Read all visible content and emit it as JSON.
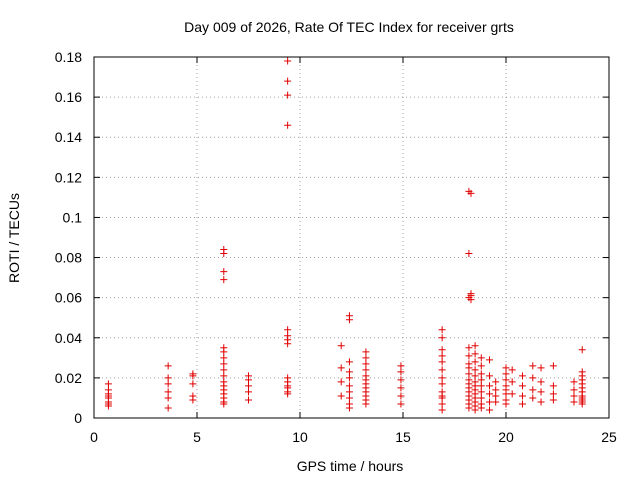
{
  "chart_data": {
    "type": "scatter",
    "title": "Day 009 of 2026, Rate Of TEC Index for receiver grts",
    "xlabel": "GPS time / hours",
    "ylabel": "ROTI / TECUs",
    "xlim": [
      0,
      25
    ],
    "ylim": [
      0,
      0.18
    ],
    "xticks": [
      0,
      5,
      10,
      15,
      20,
      25
    ],
    "yticks": [
      0,
      0.02,
      0.04,
      0.06,
      0.08,
      0.1,
      0.12,
      0.14,
      0.16,
      0.18
    ],
    "xtick_labels": [
      "0",
      "5",
      "10",
      "15",
      "20",
      "25"
    ],
    "ytick_labels": [
      "0",
      "0.02",
      "0.04",
      "0.06",
      "0.08",
      "0.1",
      "0.12",
      "0.14",
      "0.16",
      "0.18"
    ],
    "grid": true,
    "marker": "+",
    "color": "#e00000",
    "series": [
      {
        "name": "ROTI",
        "points": [
          [
            0.7,
            0.017
          ],
          [
            0.7,
            0.014
          ],
          [
            0.7,
            0.012
          ],
          [
            0.7,
            0.011
          ],
          [
            0.7,
            0.01
          ],
          [
            0.7,
            0.008
          ],
          [
            0.7,
            0.007
          ],
          [
            0.7,
            0.006
          ],
          [
            3.6,
            0.026
          ],
          [
            3.6,
            0.02
          ],
          [
            3.6,
            0.017
          ],
          [
            3.6,
            0.013
          ],
          [
            3.6,
            0.01
          ],
          [
            3.6,
            0.005
          ],
          [
            4.8,
            0.022
          ],
          [
            4.8,
            0.021
          ],
          [
            4.8,
            0.017
          ],
          [
            4.8,
            0.011
          ],
          [
            4.8,
            0.009
          ],
          [
            6.3,
            0.084
          ],
          [
            6.3,
            0.082
          ],
          [
            6.3,
            0.073
          ],
          [
            6.3,
            0.069
          ],
          [
            6.3,
            0.035
          ],
          [
            6.3,
            0.033
          ],
          [
            6.3,
            0.03
          ],
          [
            6.3,
            0.027
          ],
          [
            6.3,
            0.024
          ],
          [
            6.3,
            0.021
          ],
          [
            6.3,
            0.018
          ],
          [
            6.3,
            0.016
          ],
          [
            6.3,
            0.014
          ],
          [
            6.3,
            0.012
          ],
          [
            6.3,
            0.01
          ],
          [
            6.3,
            0.008
          ],
          [
            6.3,
            0.007
          ],
          [
            7.5,
            0.021
          ],
          [
            7.5,
            0.019
          ],
          [
            7.5,
            0.016
          ],
          [
            7.5,
            0.013
          ],
          [
            7.5,
            0.009
          ],
          [
            9.4,
            0.178
          ],
          [
            9.4,
            0.168
          ],
          [
            9.4,
            0.161
          ],
          [
            9.4,
            0.146
          ],
          [
            9.4,
            0.044
          ],
          [
            9.4,
            0.041
          ],
          [
            9.4,
            0.039
          ],
          [
            9.4,
            0.037
          ],
          [
            9.4,
            0.02
          ],
          [
            9.4,
            0.018
          ],
          [
            9.4,
            0.016
          ],
          [
            9.4,
            0.015
          ],
          [
            9.4,
            0.013
          ],
          [
            9.4,
            0.012
          ],
          [
            12.0,
            0.036
          ],
          [
            12.0,
            0.025
          ],
          [
            12.0,
            0.018
          ],
          [
            12.0,
            0.011
          ],
          [
            12.4,
            0.051
          ],
          [
            12.4,
            0.049
          ],
          [
            12.4,
            0.028
          ],
          [
            12.4,
            0.023
          ],
          [
            12.4,
            0.02
          ],
          [
            12.4,
            0.016
          ],
          [
            12.4,
            0.013
          ],
          [
            12.4,
            0.01
          ],
          [
            12.4,
            0.007
          ],
          [
            12.4,
            0.005
          ],
          [
            13.2,
            0.033
          ],
          [
            13.2,
            0.03
          ],
          [
            13.2,
            0.027
          ],
          [
            13.2,
            0.024
          ],
          [
            13.2,
            0.021
          ],
          [
            13.2,
            0.019
          ],
          [
            13.2,
            0.017
          ],
          [
            13.2,
            0.015
          ],
          [
            13.2,
            0.013
          ],
          [
            13.2,
            0.011
          ],
          [
            13.2,
            0.009
          ],
          [
            13.2,
            0.007
          ],
          [
            14.9,
            0.026
          ],
          [
            14.9,
            0.023
          ],
          [
            14.9,
            0.019
          ],
          [
            14.9,
            0.015
          ],
          [
            14.9,
            0.011
          ],
          [
            14.9,
            0.007
          ],
          [
            16.9,
            0.044
          ],
          [
            16.9,
            0.04
          ],
          [
            16.9,
            0.034
          ],
          [
            16.9,
            0.031
          ],
          [
            16.9,
            0.028
          ],
          [
            16.9,
            0.024
          ],
          [
            16.9,
            0.02
          ],
          [
            16.9,
            0.017
          ],
          [
            16.9,
            0.013
          ],
          [
            16.9,
            0.011
          ],
          [
            16.9,
            0.01
          ],
          [
            16.9,
            0.007
          ],
          [
            16.9,
            0.004
          ],
          [
            18.2,
            0.113
          ],
          [
            18.3,
            0.112
          ],
          [
            18.2,
            0.082
          ],
          [
            18.3,
            0.062
          ],
          [
            18.3,
            0.061
          ],
          [
            18.2,
            0.06
          ],
          [
            18.3,
            0.059
          ],
          [
            18.2,
            0.035
          ],
          [
            18.2,
            0.031
          ],
          [
            18.2,
            0.027
          ],
          [
            18.2,
            0.025
          ],
          [
            18.2,
            0.022
          ],
          [
            18.2,
            0.019
          ],
          [
            18.2,
            0.017
          ],
          [
            18.2,
            0.015
          ],
          [
            18.2,
            0.013
          ],
          [
            18.2,
            0.011
          ],
          [
            18.2,
            0.009
          ],
          [
            18.2,
            0.007
          ],
          [
            18.2,
            0.005
          ],
          [
            18.5,
            0.036
          ],
          [
            18.5,
            0.032
          ],
          [
            18.5,
            0.028
          ],
          [
            18.5,
            0.024
          ],
          [
            18.5,
            0.021
          ],
          [
            18.5,
            0.018
          ],
          [
            18.5,
            0.016
          ],
          [
            18.5,
            0.014
          ],
          [
            18.5,
            0.012
          ],
          [
            18.5,
            0.01
          ],
          [
            18.5,
            0.008
          ],
          [
            18.5,
            0.006
          ],
          [
            18.5,
            0.004
          ],
          [
            18.8,
            0.03
          ],
          [
            18.8,
            0.026
          ],
          [
            18.8,
            0.022
          ],
          [
            18.8,
            0.019
          ],
          [
            18.8,
            0.016
          ],
          [
            18.8,
            0.013
          ],
          [
            18.8,
            0.01
          ],
          [
            18.8,
            0.007
          ],
          [
            18.8,
            0.005
          ],
          [
            19.2,
            0.029
          ],
          [
            19.2,
            0.021
          ],
          [
            19.2,
            0.016
          ],
          [
            19.2,
            0.012
          ],
          [
            19.2,
            0.008
          ],
          [
            19.2,
            0.004
          ],
          [
            19.5,
            0.018
          ],
          [
            19.5,
            0.014
          ],
          [
            19.5,
            0.011
          ],
          [
            19.5,
            0.008
          ],
          [
            20.0,
            0.025
          ],
          [
            20.0,
            0.022
          ],
          [
            20.0,
            0.019
          ],
          [
            20.0,
            0.016
          ],
          [
            20.0,
            0.014
          ],
          [
            20.0,
            0.012
          ],
          [
            20.0,
            0.009
          ],
          [
            20.0,
            0.007
          ],
          [
            20.3,
            0.024
          ],
          [
            20.3,
            0.018
          ],
          [
            20.3,
            0.012
          ],
          [
            20.8,
            0.021
          ],
          [
            20.8,
            0.016
          ],
          [
            20.8,
            0.011
          ],
          [
            20.8,
            0.007
          ],
          [
            21.3,
            0.026
          ],
          [
            21.3,
            0.02
          ],
          [
            21.3,
            0.014
          ],
          [
            21.3,
            0.01
          ],
          [
            21.7,
            0.025
          ],
          [
            21.7,
            0.018
          ],
          [
            21.7,
            0.013
          ],
          [
            21.7,
            0.008
          ],
          [
            22.3,
            0.026
          ],
          [
            22.3,
            0.016
          ],
          [
            22.3,
            0.012
          ],
          [
            22.3,
            0.009
          ],
          [
            23.3,
            0.018
          ],
          [
            23.3,
            0.014
          ],
          [
            23.3,
            0.011
          ],
          [
            23.3,
            0.008
          ],
          [
            23.7,
            0.034
          ],
          [
            23.7,
            0.023
          ],
          [
            23.7,
            0.021
          ],
          [
            23.7,
            0.019
          ],
          [
            23.7,
            0.017
          ],
          [
            23.7,
            0.015
          ],
          [
            23.7,
            0.013
          ],
          [
            23.7,
            0.011
          ],
          [
            23.7,
            0.01
          ],
          [
            23.7,
            0.009
          ],
          [
            23.7,
            0.008
          ],
          [
            23.7,
            0.007
          ]
        ]
      }
    ]
  }
}
